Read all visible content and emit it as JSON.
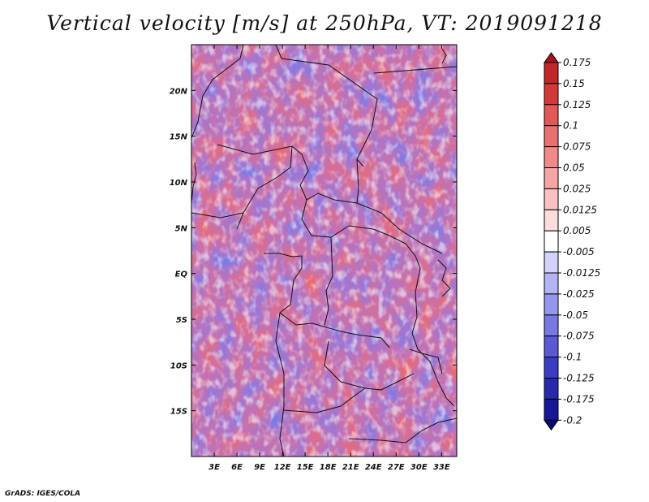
{
  "title": "Vertical velocity [m/s] at 250hPa, VT: 2019091218",
  "footer": "GrADS: IGES/COLA",
  "chart_data": {
    "type": "heatmap",
    "title": "Vertical velocity [m/s] at 250hPa, VT: 2019091218",
    "variable": "Vertical velocity",
    "units": "m/s",
    "level": "250hPa",
    "valid_time": "2019091218",
    "x_range": [
      0,
      35
    ],
    "y_range": [
      -20,
      25
    ],
    "x_ticks": [
      {
        "value": 3,
        "label": "3E"
      },
      {
        "value": 6,
        "label": "6E"
      },
      {
        "value": 9,
        "label": "9E"
      },
      {
        "value": 12,
        "label": "12E"
      },
      {
        "value": 15,
        "label": "15E"
      },
      {
        "value": 18,
        "label": "18E"
      },
      {
        "value": 21,
        "label": "21E"
      },
      {
        "value": 24,
        "label": "24E"
      },
      {
        "value": 27,
        "label": "27E"
      },
      {
        "value": 30,
        "label": "30E"
      },
      {
        "value": 33,
        "label": "33E"
      }
    ],
    "y_ticks": [
      {
        "value": 20,
        "label": "20N"
      },
      {
        "value": 15,
        "label": "15N"
      },
      {
        "value": 10,
        "label": "10N"
      },
      {
        "value": 5,
        "label": "5N"
      },
      {
        "value": 0,
        "label": "EQ"
      },
      {
        "value": -5,
        "label": "5S"
      },
      {
        "value": -10,
        "label": "10S"
      },
      {
        "value": -15,
        "label": "15S"
      }
    ],
    "colorbar": {
      "labels": [
        "0.175",
        "0.15",
        "0.125",
        "0.1",
        "0.075",
        "0.05",
        "0.025",
        "0.0125",
        "0.005",
        "-0.005",
        "-0.0125",
        "-0.025",
        "-0.05",
        "-0.075",
        "-0.1",
        "-0.125",
        "-0.175",
        "-0.2"
      ],
      "colors": [
        "#a31419",
        "#c0272b",
        "#d23a3a",
        "#e05858",
        "#e87070",
        "#f08a8a",
        "#f5a5a5",
        "#f9c2c2",
        "#fcdcdc",
        "#ffffff",
        "#d2d2fa",
        "#b4b4f5",
        "#9696eb",
        "#7878e1",
        "#5a5ad2",
        "#3c3cc3",
        "#2828aa",
        "#161696",
        "#0a0a78"
      ]
    }
  }
}
